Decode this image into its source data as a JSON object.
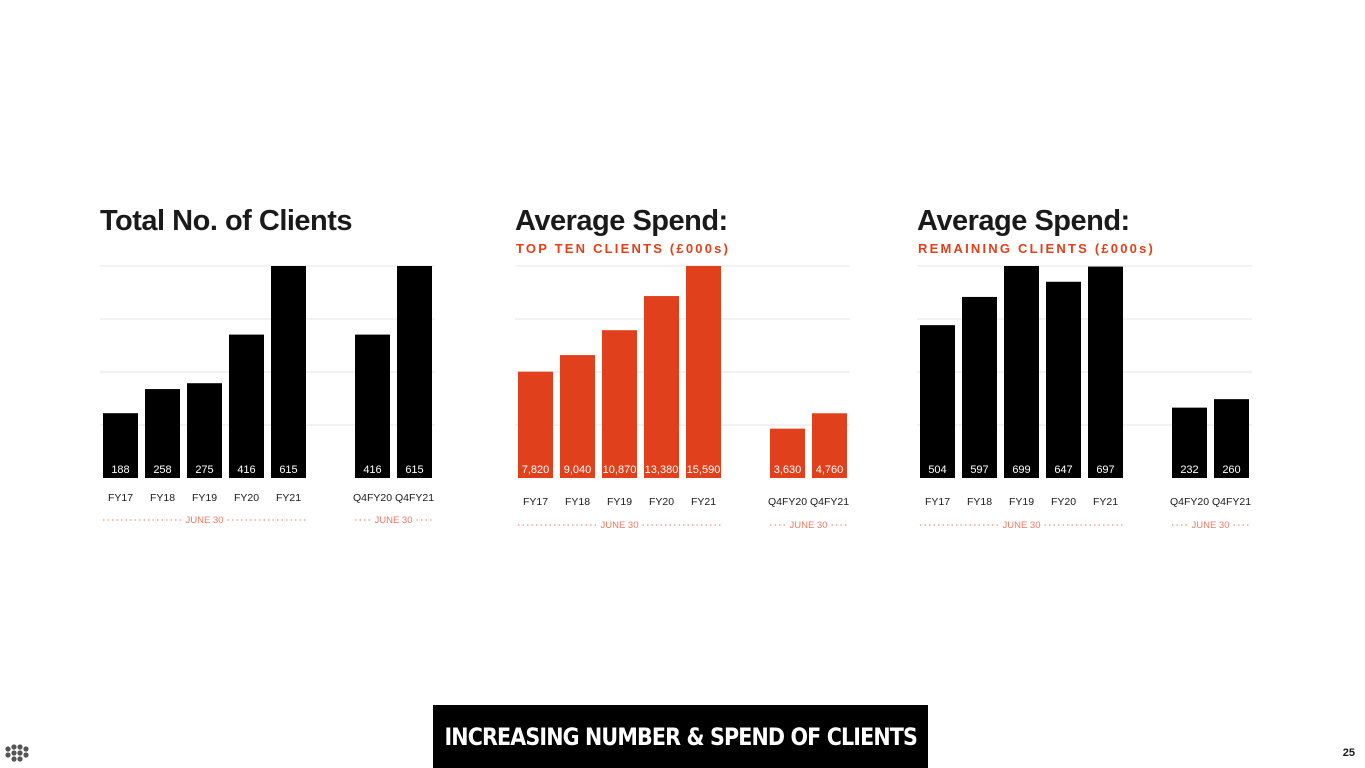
{
  "colors": {
    "black": "#000000",
    "accent": "#e0401c",
    "group_label": "#e87a62"
  },
  "footer": {
    "headline": "INCREASING NUMBER & SPEND OF CLIENTS",
    "page_number": "25",
    "logo_icon": "dots-cluster-icon"
  },
  "chart_data": [
    {
      "type": "bar",
      "title": "Total No. of Clients",
      "subtitle": "",
      "color": "#000000",
      "categories": [
        "FY17",
        "FY18",
        "FY19",
        "FY20",
        "FY21",
        "Q4FY20",
        "Q4FY21"
      ],
      "values": [
        188,
        258,
        275,
        416,
        615,
        416,
        615
      ],
      "value_labels": [
        "188",
        "258",
        "275",
        "416",
        "615",
        "416",
        "615"
      ],
      "groups": [
        {
          "label": "JUNE 30",
          "categories": [
            "FY17",
            "FY18",
            "FY19",
            "FY20",
            "FY21"
          ]
        },
        {
          "label": "JUNE 30",
          "categories": [
            "Q4FY20",
            "Q4FY21"
          ]
        }
      ],
      "grid": true,
      "ylim": [
        0,
        615
      ]
    },
    {
      "type": "bar",
      "title": "Average Spend:",
      "subtitle": "TOP TEN CLIENTS (£000s)",
      "color": "#e0401c",
      "categories": [
        "FY17",
        "FY18",
        "FY19",
        "FY20",
        "FY21",
        "Q4FY20",
        "Q4FY21"
      ],
      "values": [
        7820,
        9040,
        10870,
        13380,
        15590,
        3630,
        4760
      ],
      "value_labels": [
        "7,820",
        "9,040",
        "10,870",
        "13,380",
        "15,590",
        "3,630",
        "4,760"
      ],
      "groups": [
        {
          "label": "JUNE 30",
          "categories": [
            "FY17",
            "FY18",
            "FY19",
            "FY20",
            "FY21"
          ]
        },
        {
          "label": "JUNE 30",
          "categories": [
            "Q4FY20",
            "Q4FY21"
          ]
        }
      ],
      "grid": true,
      "ylim": [
        0,
        15590
      ]
    },
    {
      "type": "bar",
      "title": "Average Spend:",
      "subtitle": "REMAINING CLIENTS (£000s)",
      "color": "#000000",
      "categories": [
        "FY17",
        "FY18",
        "FY19",
        "FY20",
        "FY21",
        "Q4FY20",
        "Q4FY21"
      ],
      "values": [
        504,
        597,
        699,
        647,
        697,
        232,
        260
      ],
      "value_labels": [
        "504",
        "597",
        "699",
        "647",
        "697",
        "232",
        "260"
      ],
      "groups": [
        {
          "label": "JUNE 30",
          "categories": [
            "FY17",
            "FY18",
            "FY19",
            "FY20",
            "FY21"
          ]
        },
        {
          "label": "JUNE 30",
          "categories": [
            "Q4FY20",
            "Q4FY21"
          ]
        }
      ],
      "grid": true,
      "ylim": [
        0,
        699
      ]
    }
  ]
}
